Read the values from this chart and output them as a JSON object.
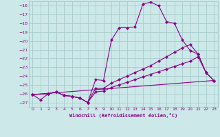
{
  "background_color": "#cce8e8",
  "grid_color": "#aacccc",
  "line_color": "#880088",
  "marker_color": "#880088",
  "xlabel": "Windchill (Refroidissement éolien,°C)",
  "xlim": [
    -0.5,
    23.5
  ],
  "ylim": [
    -27.5,
    -15.5
  ],
  "yticks": [
    -16,
    -17,
    -18,
    -19,
    -20,
    -21,
    -22,
    -23,
    -24,
    -25,
    -26,
    -27
  ],
  "xticks": [
    0,
    1,
    2,
    3,
    4,
    5,
    6,
    7,
    8,
    9,
    10,
    11,
    12,
    13,
    14,
    15,
    16,
    17,
    18,
    19,
    20,
    21,
    22,
    23
  ],
  "line1_x": [
    0,
    1,
    2,
    3,
    4,
    5,
    6,
    7,
    8,
    9,
    10,
    11,
    12,
    13,
    14,
    15,
    16,
    17,
    18,
    19,
    20,
    21,
    22,
    23
  ],
  "line1_y": [
    -26.1,
    -26.7,
    -26.0,
    -25.8,
    -26.2,
    -26.3,
    -26.5,
    -27.0,
    -24.4,
    -24.5,
    -19.9,
    -18.5,
    -18.5,
    -18.4,
    -15.8,
    -15.6,
    -16.0,
    -17.8,
    -18.0,
    -19.9,
    -21.1,
    -21.5,
    -23.6,
    -24.5
  ],
  "line2_x": [
    0,
    2,
    3,
    4,
    5,
    6,
    7,
    8,
    9,
    10,
    11,
    12,
    13,
    14,
    15,
    16,
    17,
    18,
    19,
    20,
    21,
    22,
    23
  ],
  "line2_y": [
    -26.1,
    -26.0,
    -25.8,
    -26.2,
    -26.3,
    -26.5,
    -27.0,
    -25.4,
    -25.4,
    -24.8,
    -24.4,
    -24.0,
    -23.6,
    -23.2,
    -22.8,
    -22.3,
    -21.8,
    -21.3,
    -20.8,
    -20.4,
    -21.5,
    -23.6,
    -24.5
  ],
  "line3_x": [
    0,
    2,
    3,
    4,
    5,
    6,
    7,
    8,
    9,
    10,
    11,
    12,
    13,
    14,
    15,
    16,
    17,
    18,
    19,
    20,
    21,
    22,
    23
  ],
  "line3_y": [
    -26.1,
    -26.0,
    -25.8,
    -26.2,
    -26.3,
    -26.5,
    -27.0,
    -25.8,
    -25.7,
    -25.3,
    -25.0,
    -24.7,
    -24.4,
    -24.1,
    -23.8,
    -23.5,
    -23.2,
    -22.9,
    -22.6,
    -22.3,
    -21.8,
    -23.6,
    -24.5
  ],
  "line4_x": [
    0,
    23
  ],
  "line4_y": [
    -26.1,
    -24.5
  ]
}
